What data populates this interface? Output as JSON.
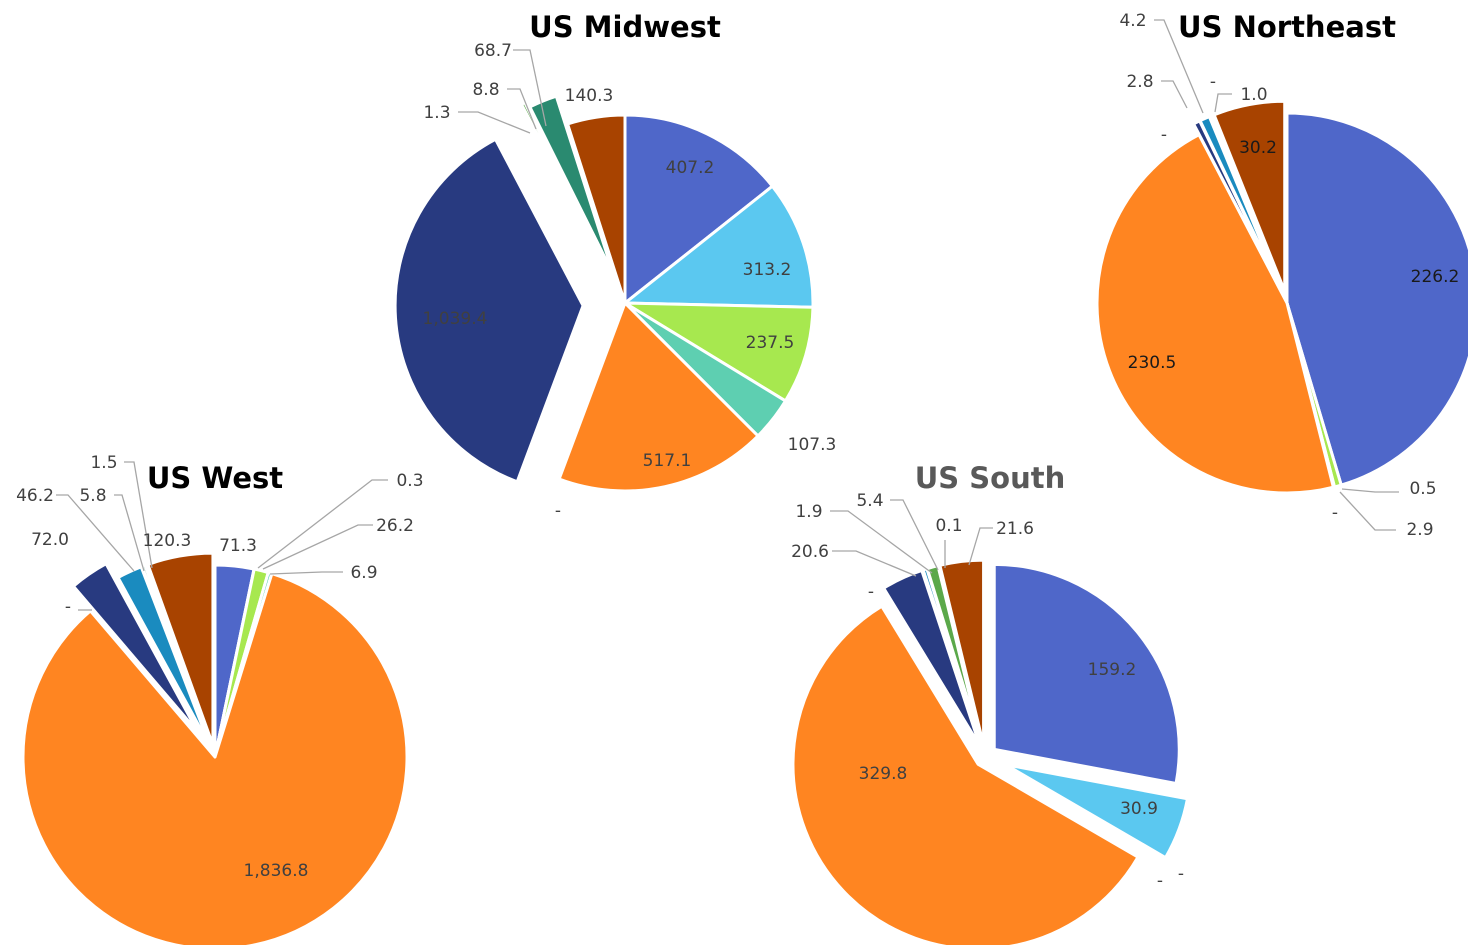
{
  "chart_data": [
    {
      "type": "pie",
      "title": "US Midwest",
      "title_color": "#000000",
      "slices": [
        {
          "value": 407.2,
          "label": "407.2",
          "color": "#4F67C9"
        },
        {
          "value": 313.2,
          "label": "313.2",
          "color": "#5BC8F0"
        },
        {
          "value": 237.5,
          "label": "237.5",
          "color": "#A7E84F"
        },
        {
          "value": 107.3,
          "label": "107.3",
          "color": "#5ECFB1"
        },
        {
          "value": 0,
          "label": "-",
          "color": "#00B0F0"
        },
        {
          "value": 517.1,
          "label": "517.1",
          "color": "#FF8521"
        },
        {
          "value": 1039.4,
          "label": "1,039.4",
          "color": "#283A80"
        },
        {
          "value": 1.3,
          "label": "1.3",
          "color": "#1A9CC0"
        },
        {
          "value": 8.8,
          "label": "8.8",
          "color": "#5BA84A"
        },
        {
          "value": 68.7,
          "label": "68.7",
          "color": "#2A8A70"
        },
        {
          "value": 140.3,
          "label": "140.3",
          "color": "#A84300"
        }
      ]
    },
    {
      "type": "pie",
      "title": "US Northeast",
      "title_color": "#000000",
      "slices": [
        {
          "value": 226.2,
          "label": "226.2",
          "color": "#4F67C9"
        },
        {
          "value": 0,
          "label": "-",
          "color": "#5BC8F0"
        },
        {
          "value": 2.9,
          "label": "2.9",
          "color": "#A7E84F"
        },
        {
          "value": 0.5,
          "label": "0.5",
          "color": "#5ECFB1"
        },
        {
          "value": 230.5,
          "label": "230.5",
          "color": "#FF8521"
        },
        {
          "value": 0,
          "label": "-",
          "color": "#1A9CC0"
        },
        {
          "value": 2.8,
          "label": "2.8",
          "color": "#283A80"
        },
        {
          "value": 4.2,
          "label": "4.2",
          "color": "#1A8BBF"
        },
        {
          "value": 0,
          "label": "-",
          "color": "#5BA84A"
        },
        {
          "value": 1.0,
          "label": "1.0",
          "color": "#2A8A70"
        },
        {
          "value": 30.2,
          "label": "30.2",
          "color": "#A84300"
        }
      ]
    },
    {
      "type": "pie",
      "title": "US West",
      "title_color": "#000000",
      "slices": [
        {
          "value": 71.3,
          "label": "71.3",
          "color": "#4F67C9"
        },
        {
          "value": 0.3,
          "label": "0.3",
          "color": "#5BC8F0"
        },
        {
          "value": 26.2,
          "label": "26.2",
          "color": "#A7E84F"
        },
        {
          "value": 6.9,
          "label": "6.9",
          "color": "#5ECFB1"
        },
        {
          "value": 1836.8,
          "label": "1,836.8",
          "color": "#FF8521"
        },
        {
          "value": 0,
          "label": "-",
          "color": "#1A9CC0"
        },
        {
          "value": 72.0,
          "label": "72.0",
          "color": "#283A80"
        },
        {
          "value": 46.2,
          "label": "46.2",
          "color": "#1A8BBF"
        },
        {
          "value": 5.8,
          "label": "5.8",
          "color": "#2A8A70"
        },
        {
          "value": 1.5,
          "label": "1.5",
          "color": "#5BA84A"
        },
        {
          "value": 120.3,
          "label": "120.3",
          "color": "#A84300"
        }
      ]
    },
    {
      "type": "pie",
      "title": "US South",
      "title_color": "#595959",
      "slices": [
        {
          "value": 159.2,
          "label": "159.2",
          "color": "#4F67C9"
        },
        {
          "value": 30.9,
          "label": "30.9",
          "color": "#5BC8F0"
        },
        {
          "value": 0,
          "label": "-",
          "color": "#A7E84F"
        },
        {
          "value": 0,
          "label": "-",
          "color": "#5ECFB1"
        },
        {
          "value": 329.8,
          "label": "329.8",
          "color": "#FF8521"
        },
        {
          "value": 0,
          "label": "-",
          "color": "#1A9CC0"
        },
        {
          "value": 20.6,
          "label": "20.6",
          "color": "#283A80"
        },
        {
          "value": 1.9,
          "label": "1.9",
          "color": "#1A8BBF"
        },
        {
          "value": 5.4,
          "label": "5.4",
          "color": "#5BA84A"
        },
        {
          "value": 0.1,
          "label": "0.1",
          "color": "#2A8A70"
        },
        {
          "value": 21.6,
          "label": "21.6",
          "color": "#A84300"
        }
      ]
    }
  ]
}
